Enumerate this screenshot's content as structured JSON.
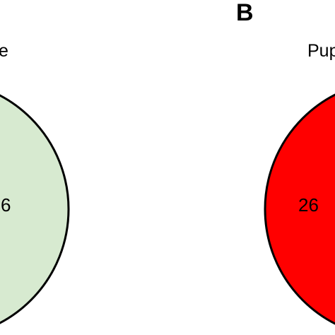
{
  "panel_b": {
    "letter": "B"
  },
  "left_set": {
    "label_fragment": "e",
    "count_fragment": "6",
    "fill": "#d7ead0"
  },
  "right_set": {
    "label_fragment": "Pup",
    "count_fragment": "26",
    "fill": "#ff0000"
  },
  "outline_color": "#000000"
}
